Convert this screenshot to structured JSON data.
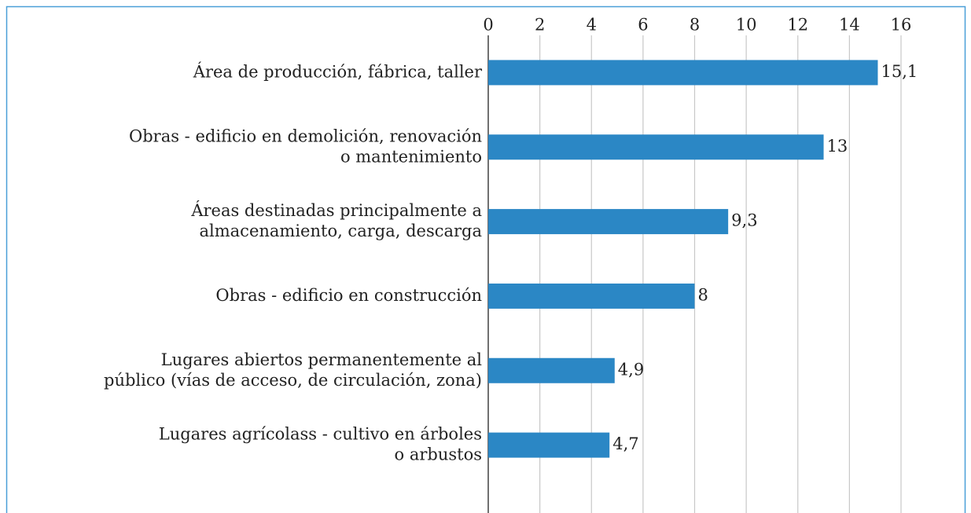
{
  "chart_data": {
    "type": "bar",
    "orientation": "horizontal",
    "categories": [
      [
        "Área de producción, fábrica, taller"
      ],
      [
        "Obras - edificio en demolición, renovación",
        "o mantenimiento"
      ],
      [
        "Áreas destinadas principalmente a",
        "almacenamiento, carga, descarga"
      ],
      [
        "Obras - edificio en construcción"
      ],
      [
        "Lugares abiertos permanentemente al",
        "público (vías de acceso, de circulación, zona)"
      ],
      [
        "Lugares agrícolass - cultivo en árboles",
        "o arbustos"
      ]
    ],
    "values": [
      15.1,
      13,
      9.3,
      8,
      4.9,
      4.7
    ],
    "value_labels": [
      "15,1",
      "13",
      "9,3",
      "8",
      "4,9",
      "4,7"
    ],
    "color": "#2b87c5",
    "xlim": [
      0,
      16
    ],
    "xticks": [
      0,
      2,
      4,
      6,
      8,
      10,
      12,
      14,
      16
    ],
    "grid": true
  }
}
